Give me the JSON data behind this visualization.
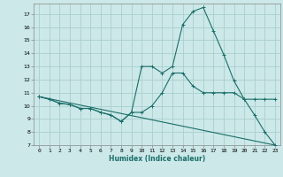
{
  "xlabel": "Humidex (Indice chaleur)",
  "background_color": "#cce8e8",
  "grid_color": "#aacece",
  "line_color": "#1a6e6a",
  "xlim": [
    -0.5,
    23.5
  ],
  "ylim": [
    7,
    17.8
  ],
  "yticks": [
    7,
    8,
    9,
    10,
    11,
    12,
    13,
    14,
    15,
    16,
    17
  ],
  "xticks": [
    0,
    1,
    2,
    3,
    4,
    5,
    6,
    7,
    8,
    9,
    10,
    11,
    12,
    13,
    14,
    15,
    16,
    17,
    18,
    19,
    20,
    21,
    22,
    23
  ],
  "series1_x": [
    0,
    1,
    2,
    3,
    4,
    5,
    6,
    7,
    8,
    9,
    10,
    11,
    12,
    13,
    14,
    15,
    16,
    17,
    18,
    19,
    20,
    21,
    22,
    23
  ],
  "series1_y": [
    10.7,
    10.5,
    10.2,
    10.1,
    9.8,
    9.8,
    9.5,
    9.3,
    8.8,
    9.5,
    9.5,
    10.0,
    11.0,
    12.5,
    12.5,
    11.5,
    11.0,
    11.0,
    11.0,
    11.0,
    10.5,
    10.5,
    10.5,
    10.5
  ],
  "series2_x": [
    0,
    1,
    2,
    3,
    4,
    5,
    6,
    7,
    8,
    9,
    10,
    11,
    12,
    13,
    14,
    15,
    16,
    17,
    18,
    19,
    20,
    21,
    22,
    23
  ],
  "series2_y": [
    10.7,
    10.5,
    10.2,
    10.1,
    9.8,
    9.8,
    9.5,
    9.3,
    8.8,
    9.5,
    13.0,
    13.0,
    12.5,
    13.0,
    16.2,
    17.2,
    17.5,
    15.7,
    13.9,
    11.9,
    10.5,
    9.3,
    8.0,
    7.0
  ],
  "series3_x": [
    0,
    23
  ],
  "series3_y": [
    10.7,
    7.0
  ]
}
